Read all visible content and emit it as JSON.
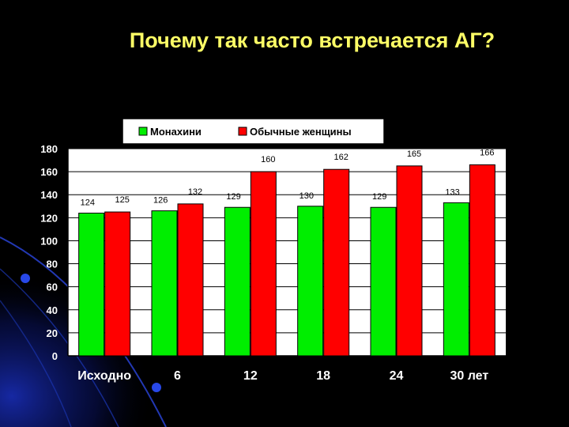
{
  "slide": {
    "title": "Почему так часто встречается АГ?"
  },
  "colors": {
    "background": "#000000",
    "title": "#ffff66",
    "plot_area": "#ffffff",
    "series_1": "#00ee00",
    "series_2": "#ff0000",
    "axis_text": "#ffffff",
    "decor": "#1a2fbf"
  },
  "chart_data": {
    "type": "bar",
    "title": "",
    "xlabel": "",
    "ylabel": "",
    "categories": [
      "Исходно",
      "6",
      "12",
      "18",
      "24",
      "30 лет"
    ],
    "series": [
      {
        "name": "Монахини",
        "values": [
          124,
          126,
          129,
          130,
          129,
          133
        ]
      },
      {
        "name": "Обычные женщины",
        "values": [
          125,
          132,
          160,
          162,
          165,
          166
        ]
      }
    ],
    "ylim": [
      0,
      180
    ],
    "yticks": [
      0,
      20,
      40,
      60,
      80,
      100,
      120,
      140,
      160,
      180
    ],
    "grid": true,
    "legend_position": "top",
    "data_labels": true
  }
}
